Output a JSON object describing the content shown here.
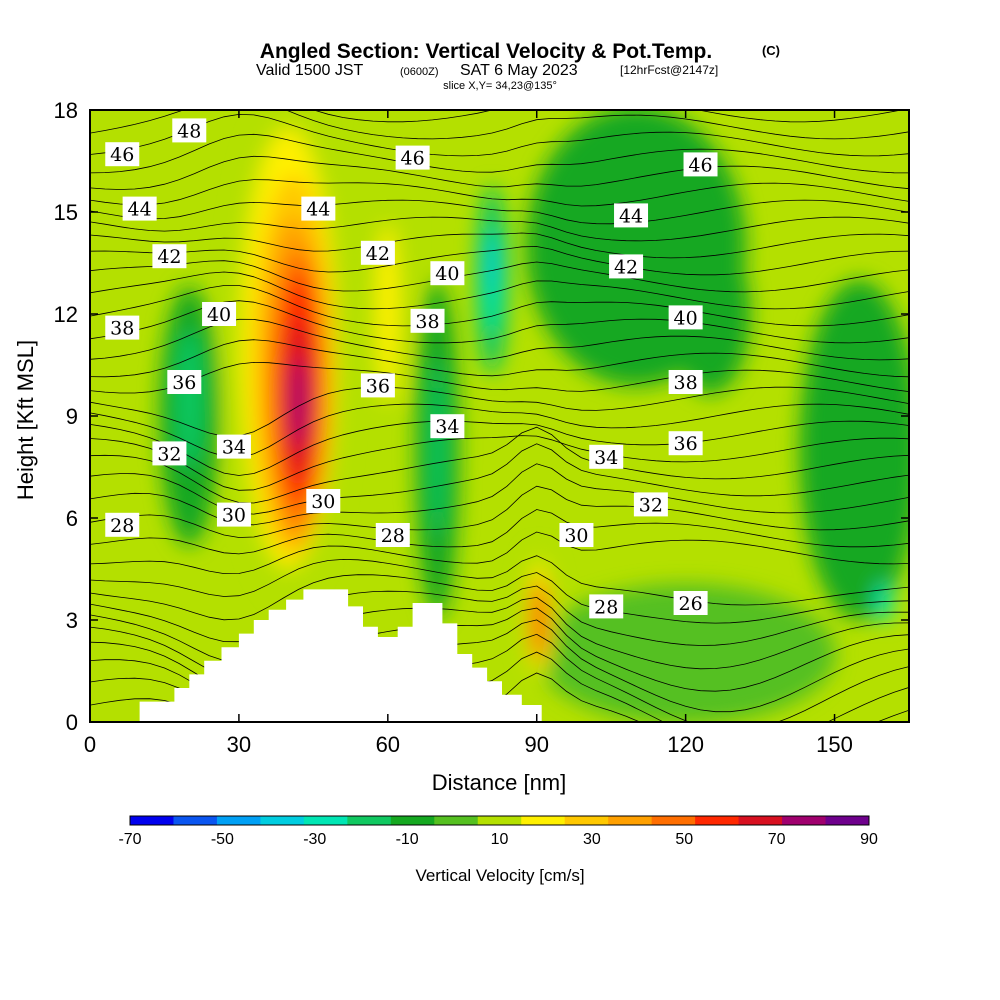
{
  "title": {
    "main": "Angled Section: Vertical Velocity & Pot.Temp.",
    "main_suffix": "(C)",
    "valid_prefix": "Valid 1500 JST",
    "valid_zulu": "(0600Z)",
    "valid_date": "SAT 6 May 2023",
    "forecast": "[12hrFcst@2147z]",
    "slice": "slice X,Y= 34,23@135°"
  },
  "chart_data": {
    "type": "heatmap",
    "xlabel": "Distance [nm]",
    "ylabel": "Height [Kft MSL]",
    "xlim": [
      0,
      165
    ],
    "ylim": [
      0,
      18
    ],
    "x_ticks": [
      "0",
      "30",
      "60",
      "90",
      "120",
      "150"
    ],
    "x_tick_values": [
      0,
      30,
      60,
      90,
      120,
      150
    ],
    "y_ticks": [
      "0",
      "3",
      "6",
      "9",
      "12",
      "15",
      "18"
    ],
    "y_tick_values": [
      0,
      3,
      6,
      9,
      12,
      15,
      18
    ],
    "field": "Vertical Velocity",
    "field_units": "cm/s",
    "colorbar": {
      "label": "Vertical Velocity [cm/s]",
      "tick_labels": [
        "-70",
        "-50",
        "-30",
        "-10",
        "10",
        "30",
        "50",
        "70",
        "90"
      ],
      "tick_values": [
        -70,
        -50,
        -30,
        -10,
        10,
        30,
        50,
        70,
        90
      ],
      "levels": [
        -70,
        -60,
        -50,
        -40,
        -30,
        -20,
        -10,
        0,
        10,
        20,
        30,
        40,
        50,
        60,
        70,
        80,
        90
      ],
      "colors": [
        "#0000ee",
        "#0a55f0",
        "#00a0f5",
        "#00cde0",
        "#00e6b4",
        "#10c860",
        "#15a820",
        "#55c020",
        "#b4e000",
        "#fff000",
        "#ffc800",
        "#ffa000",
        "#ff6e00",
        "#ff2800",
        "#d81020",
        "#a0006e",
        "#6e008c"
      ]
    },
    "velocity_regions": [
      {
        "label": "updraft maximum",
        "x": 42,
        "y": 9.5,
        "value": 85
      },
      {
        "label": "updraft core",
        "x": 42,
        "y": 10,
        "value": 65
      },
      {
        "label": "updraft upper",
        "x": 38,
        "y": 14,
        "value": 40
      },
      {
        "label": "updraft low-level",
        "x": 90.5,
        "y": 3.2,
        "value": 60
      },
      {
        "label": "downdraft",
        "x": 81,
        "y": 13,
        "value": -35
      },
      {
        "label": "downdraft band",
        "x": 70,
        "y": 8,
        "value": -15
      },
      {
        "label": "downdraft",
        "x": 20,
        "y": 9,
        "value": -20
      },
      {
        "label": "sinking region",
        "x": 110,
        "y": 14,
        "value": -10
      },
      {
        "label": "sinking region",
        "x": 155,
        "y": 8,
        "value": -12
      }
    ],
    "theta_contours": {
      "variable": "Potential Temperature",
      "units": "C",
      "labels": [
        {
          "value": "48",
          "x": 20,
          "y": 17.4
        },
        {
          "value": "46",
          "x": 6.5,
          "y": 16.7
        },
        {
          "value": "46",
          "x": 65,
          "y": 16.6
        },
        {
          "value": "46",
          "x": 123,
          "y": 16.4
        },
        {
          "value": "44",
          "x": 10,
          "y": 15.1
        },
        {
          "value": "44",
          "x": 46,
          "y": 15.1
        },
        {
          "value": "44",
          "x": 109,
          "y": 14.9
        },
        {
          "value": "42",
          "x": 16,
          "y": 13.7
        },
        {
          "value": "42",
          "x": 58,
          "y": 13.8
        },
        {
          "value": "42",
          "x": 108,
          "y": 13.4
        },
        {
          "value": "40",
          "x": 26,
          "y": 12.0
        },
        {
          "value": "40",
          "x": 72,
          "y": 13.2
        },
        {
          "value": "40",
          "x": 120,
          "y": 11.9
        },
        {
          "value": "38",
          "x": 6.5,
          "y": 11.6
        },
        {
          "value": "38",
          "x": 68,
          "y": 11.8
        },
        {
          "value": "38",
          "x": 120,
          "y": 10.0
        },
        {
          "value": "36",
          "x": 19,
          "y": 10.0
        },
        {
          "value": "36",
          "x": 58,
          "y": 9.9
        },
        {
          "value": "36",
          "x": 120,
          "y": 8.2
        },
        {
          "value": "34",
          "x": 29,
          "y": 8.1
        },
        {
          "value": "34",
          "x": 72,
          "y": 8.7
        },
        {
          "value": "34",
          "x": 104,
          "y": 7.8
        },
        {
          "value": "32",
          "x": 16,
          "y": 7.9
        },
        {
          "value": "32",
          "x": 113,
          "y": 6.4
        },
        {
          "value": "30",
          "x": 29,
          "y": 6.1
        },
        {
          "value": "30",
          "x": 47,
          "y": 6.5
        },
        {
          "value": "30",
          "x": 98,
          "y": 5.5
        },
        {
          "value": "28",
          "x": 6.5,
          "y": 5.8
        },
        {
          "value": "28",
          "x": 61,
          "y": 5.5
        },
        {
          "value": "28",
          "x": 104,
          "y": 3.4
        },
        {
          "value": "26",
          "x": 121,
          "y": 3.5
        }
      ]
    },
    "terrain": [
      [
        0,
        0
      ],
      [
        10,
        0
      ],
      [
        10,
        0.6
      ],
      [
        17,
        0.6
      ],
      [
        17,
        1.0
      ],
      [
        20,
        1.0
      ],
      [
        20,
        1.4
      ],
      [
        23,
        1.4
      ],
      [
        23,
        1.8
      ],
      [
        26.5,
        1.8
      ],
      [
        26.5,
        2.2
      ],
      [
        30,
        2.2
      ],
      [
        30,
        2.6
      ],
      [
        33,
        2.6
      ],
      [
        33,
        3.0
      ],
      [
        36,
        3.0
      ],
      [
        36,
        3.3
      ],
      [
        39.5,
        3.3
      ],
      [
        39.5,
        3.6
      ],
      [
        43,
        3.6
      ],
      [
        43,
        3.9
      ],
      [
        52,
        3.9
      ],
      [
        52,
        3.4
      ],
      [
        55,
        3.4
      ],
      [
        55,
        2.8
      ],
      [
        58,
        2.8
      ],
      [
        58,
        2.5
      ],
      [
        62,
        2.5
      ],
      [
        62,
        2.8
      ],
      [
        65,
        2.8
      ],
      [
        65,
        3.5
      ],
      [
        71,
        3.5
      ],
      [
        71,
        2.9
      ],
      [
        74,
        2.9
      ],
      [
        74,
        2.0
      ],
      [
        77,
        2.0
      ],
      [
        77,
        1.6
      ],
      [
        80,
        1.6
      ],
      [
        80,
        1.2
      ],
      [
        83,
        1.2
      ],
      [
        83,
        0.8
      ],
      [
        87,
        0.8
      ],
      [
        87,
        0.5
      ],
      [
        91,
        0.5
      ],
      [
        91,
        0
      ],
      [
        165,
        0
      ]
    ]
  }
}
